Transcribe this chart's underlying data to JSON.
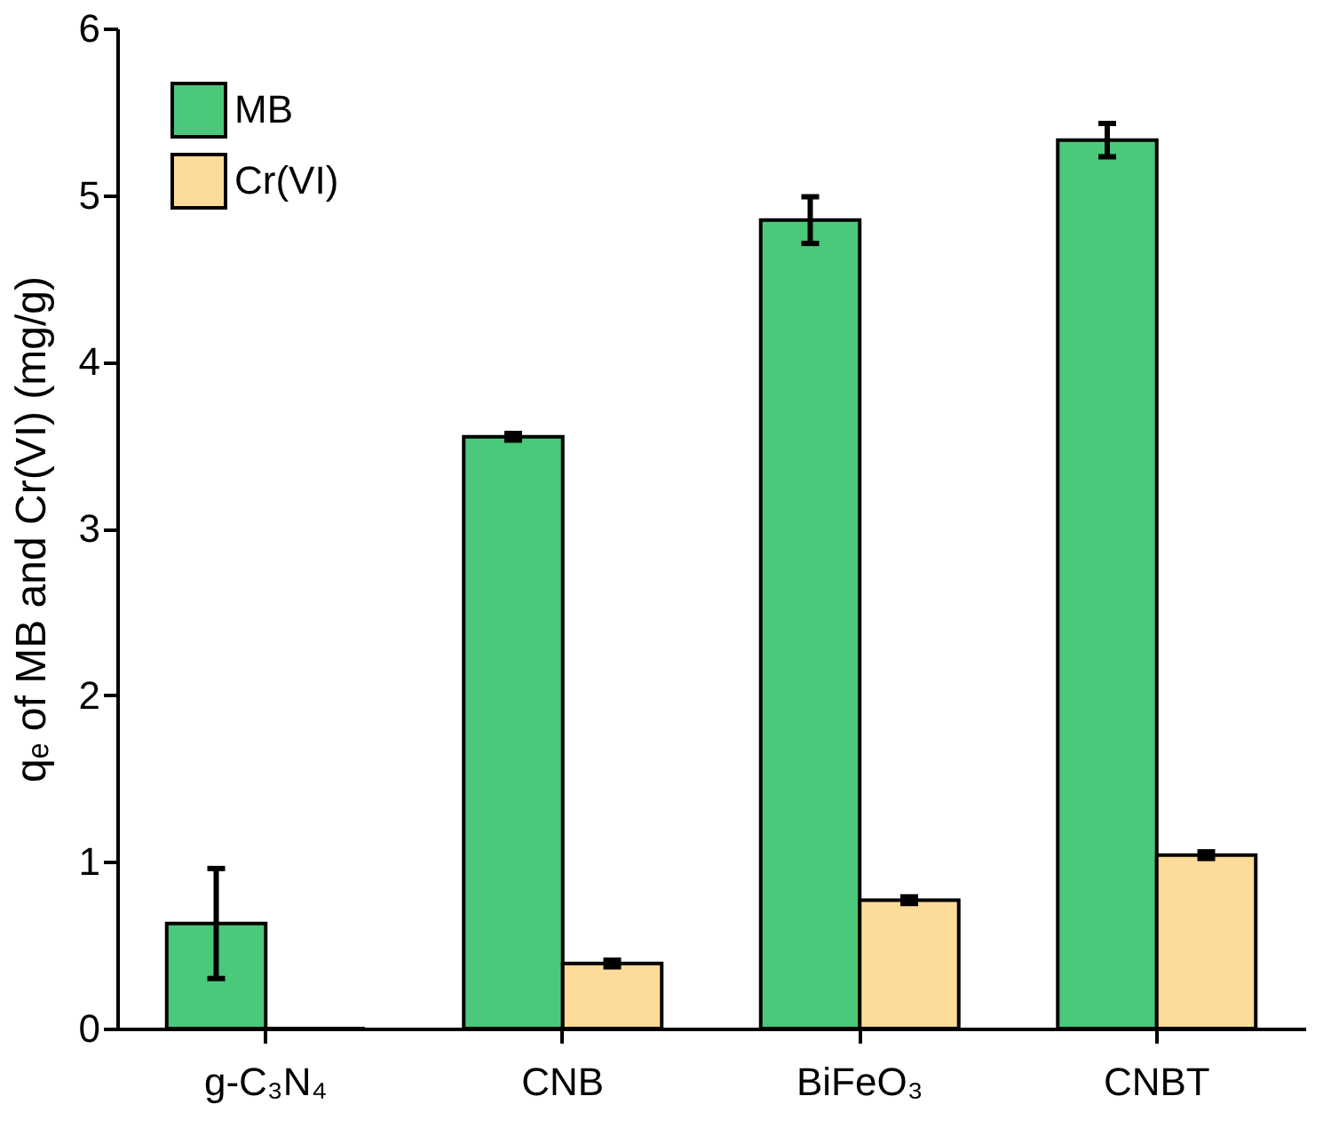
{
  "chart_data": {
    "type": "bar",
    "ylabel": "qₑ of MB and Cr(VI) (mg/g)",
    "categories": [
      "g-C₃N₄",
      "CNB",
      "BiFeO₃",
      "CNBT"
    ],
    "series": [
      {
        "name": "MB",
        "color": "#4ac97a",
        "values": [
          0.63,
          3.55,
          4.85,
          5.33
        ],
        "errors": [
          0.33,
          0.02,
          0.14,
          0.1
        ]
      },
      {
        "name": "Cr(VI)",
        "color": "#fddc9a",
        "values": [
          0,
          0.39,
          0.77,
          1.04
        ],
        "errors": [
          null,
          0.02,
          0.02,
          0.02
        ]
      }
    ],
    "ylim": [
      0,
      6
    ],
    "yticks": [
      0,
      1,
      2,
      3,
      4,
      5,
      6
    ],
    "grid": false,
    "legend": "top left"
  }
}
